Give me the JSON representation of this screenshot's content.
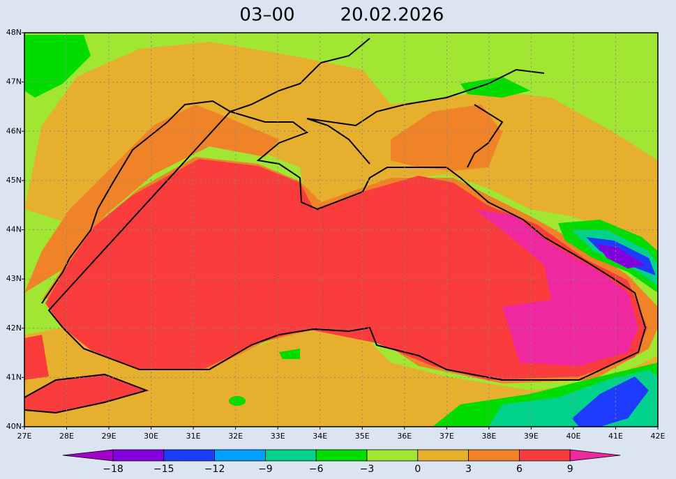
{
  "header": {
    "time": "03–00",
    "date": "20.02.2026"
  },
  "map": {
    "lon_labels": [
      "27E",
      "28E",
      "29E",
      "30E",
      "31E",
      "32E",
      "33E",
      "34E",
      "35E",
      "36E",
      "37E",
      "38E",
      "39E",
      "40E",
      "41E",
      "42E"
    ],
    "lat_labels": [
      "48N",
      "47N",
      "46N",
      "45N",
      "44N",
      "43N",
      "42N",
      "41N",
      "40N"
    ]
  },
  "colorbar": {
    "labels": [
      "−18",
      "−15",
      "−12",
      "−9",
      "−6",
      "−3",
      "0",
      "3",
      "6",
      "9"
    ],
    "colors": [
      "#a000c8",
      "#8200dc",
      "#1e3cff",
      "#00a0ff",
      "#00d28c",
      "#00dc00",
      "#a0e632",
      "#e6af2d",
      "#f08228",
      "#fa3c3c",
      "#f028a0"
    ]
  }
}
